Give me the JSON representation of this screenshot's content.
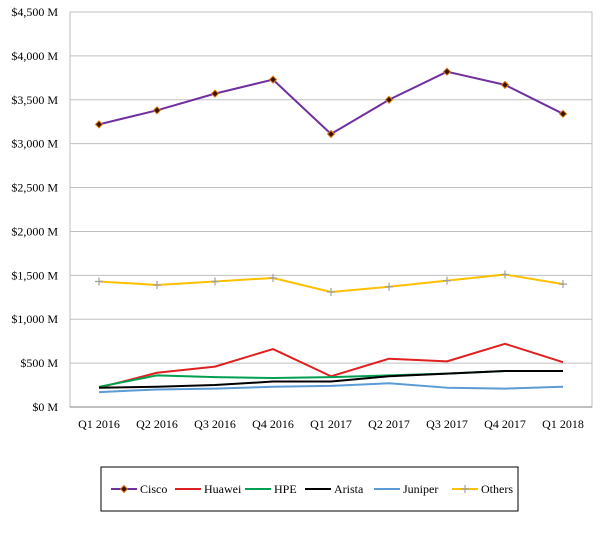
{
  "chart_data": {
    "type": "line",
    "title": "",
    "xlabel": "",
    "ylabel": "",
    "categories": [
      "Q1 2016",
      "Q2 2016",
      "Q3 2016",
      "Q4 2016",
      "Q1 2017",
      "Q2 2017",
      "Q3 2017",
      "Q4 2017",
      "Q1 2018"
    ],
    "ylim": [
      0,
      4500
    ],
    "yticks": [
      0,
      500,
      1000,
      1500,
      2000,
      2500,
      3000,
      3500,
      4000,
      4500
    ],
    "ytick_labels": [
      "$0 M",
      "$500 M",
      "$1,000 M",
      "$1,500 M",
      "$2,000 M",
      "$2,500 M",
      "$3,000 M",
      "$3,500 M",
      "$4,000 M",
      "$4,500 M"
    ],
    "grid": "horizontal",
    "legend_position": "bottom",
    "series": [
      {
        "name": "Cisco",
        "color": "#7030A0",
        "marker": "diamond",
        "values": [
          3220,
          3380,
          3570,
          3730,
          3110,
          3500,
          3820,
          3670,
          3340
        ]
      },
      {
        "name": "Huawei",
        "color": "#E02020",
        "marker": "none",
        "values": [
          220,
          390,
          460,
          660,
          350,
          550,
          520,
          720,
          510
        ]
      },
      {
        "name": "HPE",
        "color": "#00A050",
        "marker": "none",
        "values": [
          230,
          360,
          340,
          330,
          340,
          360,
          380,
          410,
          410
        ]
      },
      {
        "name": "Arista",
        "color": "#000000",
        "marker": "none",
        "values": [
          220,
          230,
          250,
          290,
          290,
          350,
          380,
          410,
          410
        ]
      },
      {
        "name": "Juniper",
        "color": "#5B9BD5",
        "marker": "none",
        "values": [
          170,
          200,
          210,
          230,
          240,
          270,
          220,
          210,
          230
        ]
      },
      {
        "name": "Others",
        "color": "#FFC000",
        "marker": "plus",
        "values": [
          1430,
          1390,
          1430,
          1470,
          1310,
          1370,
          1440,
          1510,
          1400
        ]
      }
    ]
  }
}
